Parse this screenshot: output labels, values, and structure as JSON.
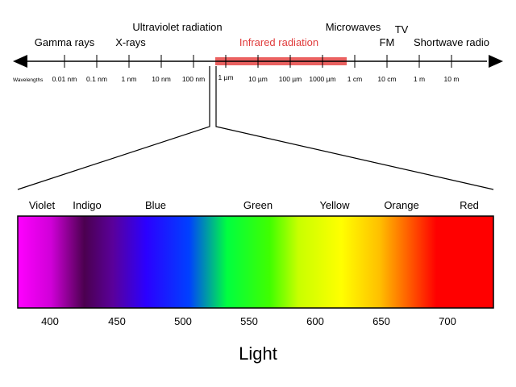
{
  "scale": {
    "prefix_label": "Wavelengths",
    "ticks": [
      "0.01 nm",
      "0.1 nm",
      "1 nm",
      "10 nm",
      "100 nm",
      "1 µm",
      "10 µm",
      "100 µm",
      "1000 µm",
      "1 cm",
      "10 cm",
      "1 m",
      "10 m"
    ]
  },
  "bands": {
    "gamma": "Gamma rays",
    "xrays": "X-rays",
    "uv": "Ultraviolet radiation",
    "infrared": "Infrared radiation",
    "microwaves": "Microwaves",
    "tv": "TV",
    "fm": "FM",
    "shortwave": "Shortwave radio"
  },
  "spectrum": {
    "colors": [
      "Violet",
      "Indigo",
      "Blue",
      "Green",
      "Yellow",
      "Orange",
      "Red"
    ],
    "wavelengths": [
      "400",
      "450",
      "500",
      "550",
      "600",
      "650",
      "700"
    ],
    "title": "Light"
  },
  "colors": {
    "infrared_accent": "#e03c3c",
    "infrared_bar": "#e8504f"
  }
}
